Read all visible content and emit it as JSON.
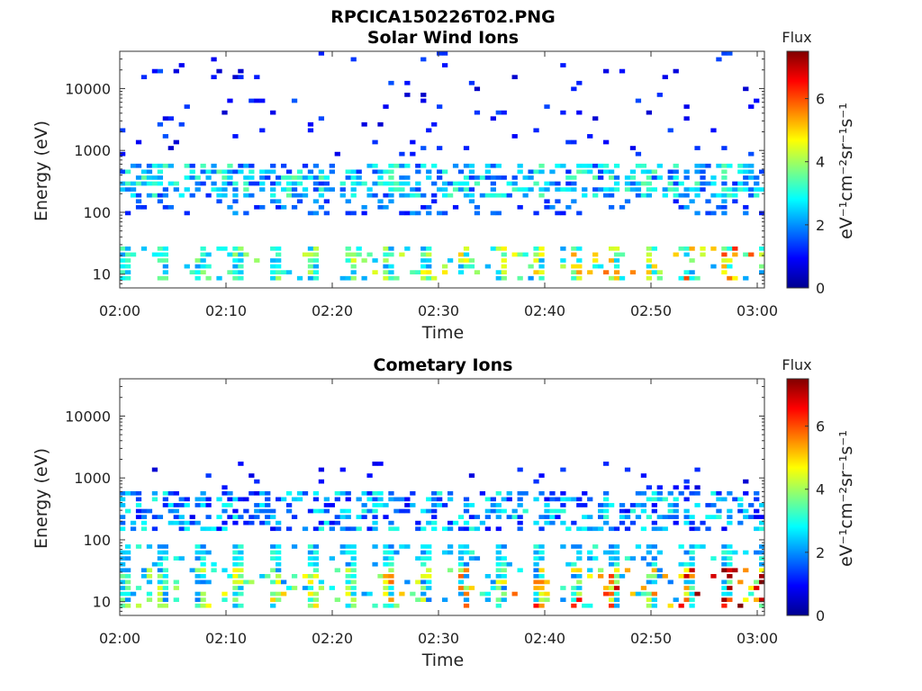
{
  "figure": {
    "title": "RPCICA150226T02.PNG"
  },
  "chart_data": [
    {
      "type": "heatmap",
      "title": "Solar Wind Ions",
      "xlabel": "Time",
      "ylabel": "Energy (eV)",
      "x_ticks": [
        "02:00",
        "02:10",
        "02:20",
        "02:30",
        "02:40",
        "02:50",
        "03:00"
      ],
      "xlim": [
        "02:00",
        "03:00"
      ],
      "y_scale": "log",
      "y_ticks": [
        "10",
        "100",
        "1000",
        "10000"
      ],
      "ylim": [
        6,
        40000
      ],
      "colorbar": {
        "label": "Flux",
        "unit": "eV⁻¹cm⁻²sr⁻¹s⁻¹",
        "ticks": [
          "0",
          "2",
          "4",
          "6"
        ],
        "range": [
          0,
          7.5
        ]
      },
      "features": [
        {
          "energy_eV": [
            150,
            500
          ],
          "flux": [
            1.5,
            3.5
          ],
          "description_visible": false
        },
        {
          "energy_eV": [
            10,
            30
          ],
          "flux": [
            3,
            5.5
          ]
        },
        {
          "energy_eV": [
            1000,
            40000
          ],
          "flux": [
            0.5,
            1.5
          ]
        }
      ]
    },
    {
      "type": "heatmap",
      "title": "Cometary Ions",
      "xlabel": "Time",
      "ylabel": "Energy (eV)",
      "x_ticks": [
        "02:00",
        "02:10",
        "02:20",
        "02:30",
        "02:40",
        "02:50",
        "03:00"
      ],
      "xlim": [
        "02:00",
        "03:00"
      ],
      "y_scale": "log",
      "y_ticks": [
        "10",
        "100",
        "1000",
        "10000"
      ],
      "ylim": [
        6,
        40000
      ],
      "colorbar": {
        "label": "Flux",
        "unit": "eV⁻¹cm⁻²sr⁻¹s⁻¹",
        "ticks": [
          "0",
          "2",
          "4",
          "6"
        ],
        "range": [
          0,
          7.5
        ]
      },
      "features": [
        {
          "energy_eV": [
            100,
            600
          ],
          "flux": [
            1,
            3
          ]
        },
        {
          "energy_eV": [
            8,
            60
          ],
          "flux": [
            3,
            6.5
          ]
        }
      ]
    }
  ]
}
